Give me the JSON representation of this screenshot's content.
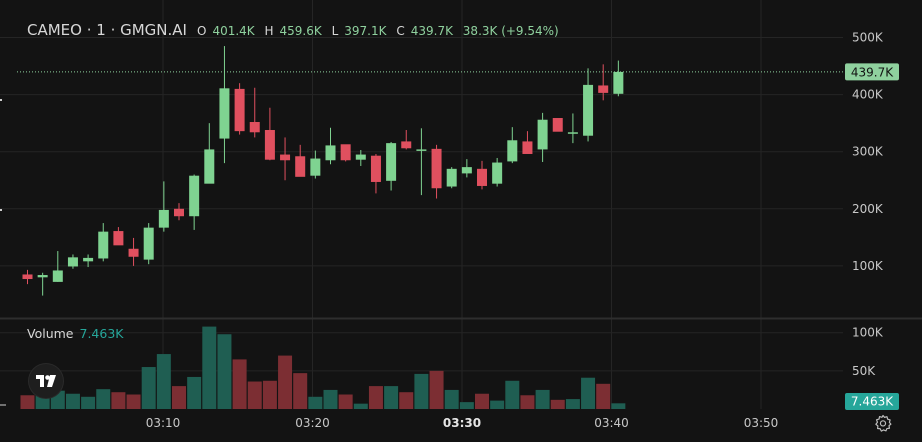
{
  "legend": {
    "symbol": "CAMEO · 1 · GMGN.AI",
    "o_label": "O",
    "o": "401.4K",
    "h_label": "H",
    "h": "459.6K",
    "l_label": "L",
    "l": "397.1K",
    "c_label": "C",
    "c": "439.7K",
    "change": "38.3K (+9.54%)"
  },
  "volume_legend": {
    "label": "Volume",
    "value": "7.463K"
  },
  "colors": {
    "up": "#7fd391",
    "down": "#e0505f",
    "vol_up": "#1f5e52",
    "vol_down": "#7c2e33",
    "bg": "#131313",
    "grid": "#252525",
    "axis_text": "#c8c8c8",
    "price_tag": "#8fd19e",
    "vol_tag": "#26a69a"
  },
  "icons": {
    "logo": "tradingview-logo-icon",
    "settings": "gear-icon"
  },
  "chart_data": {
    "type": "candlestick",
    "price_axis": {
      "ticks": [
        100000,
        200000,
        300000,
        400000,
        500000
      ],
      "tick_labels": [
        "100K",
        "200K",
        "300K",
        "400K",
        "500K"
      ]
    },
    "volume_axis": {
      "ticks": [
        50000,
        100000
      ],
      "tick_labels": [
        "50K",
        "100K"
      ]
    },
    "time_axis": {
      "tick_labels": [
        "03:10",
        "03:20",
        "03:30",
        "03:40",
        "03:50"
      ],
      "bold_label": "03:30"
    },
    "last_price_label": "439.7K",
    "last_volume_label": "7.463K",
    "candles": [
      {
        "t": "03:02",
        "o": 85000,
        "h": 93000,
        "l": 68000,
        "c": 77000,
        "v": 18000
      },
      {
        "t": "03:03",
        "o": 80000,
        "h": 88000,
        "l": 48000,
        "c": 84000,
        "v": 21000
      },
      {
        "t": "03:04",
        "o": 72000,
        "h": 126000,
        "l": 72000,
        "c": 92000,
        "v": 24000
      },
      {
        "t": "03:05",
        "o": 99000,
        "h": 120000,
        "l": 95000,
        "c": 115000,
        "v": 20000
      },
      {
        "t": "03:06",
        "o": 108000,
        "h": 120000,
        "l": 98000,
        "c": 114000,
        "v": 16000
      },
      {
        "t": "03:07",
        "o": 113000,
        "h": 175000,
        "l": 108000,
        "c": 160000,
        "v": 26000
      },
      {
        "t": "03:08",
        "o": 161000,
        "h": 168000,
        "l": 137000,
        "c": 136000,
        "v": 22000
      },
      {
        "t": "03:09",
        "o": 130000,
        "h": 149000,
        "l": 100000,
        "c": 116000,
        "v": 19000
      },
      {
        "t": "03:10",
        "o": 111000,
        "h": 175000,
        "l": 103000,
        "c": 167000,
        "v": 55000
      },
      {
        "t": "03:11",
        "o": 167000,
        "h": 248000,
        "l": 160000,
        "c": 198000,
        "v": 72000
      },
      {
        "t": "03:12",
        "o": 200000,
        "h": 210000,
        "l": 180000,
        "c": 187000,
        "v": 30000
      },
      {
        "t": "03:13",
        "o": 187000,
        "h": 260000,
        "l": 163000,
        "c": 258000,
        "v": 42000
      },
      {
        "t": "03:14",
        "o": 244000,
        "h": 350000,
        "l": 245000,
        "c": 304000,
        "v": 108000
      },
      {
        "t": "03:15",
        "o": 323000,
        "h": 485000,
        "l": 280000,
        "c": 411000,
        "v": 98000
      },
      {
        "t": "03:16",
        "o": 410000,
        "h": 420000,
        "l": 330000,
        "c": 336000,
        "v": 65000
      },
      {
        "t": "03:17",
        "o": 352000,
        "h": 412000,
        "l": 325000,
        "c": 334000,
        "v": 36000
      },
      {
        "t": "03:18",
        "o": 338000,
        "h": 377000,
        "l": 285000,
        "c": 286000,
        "v": 37000
      },
      {
        "t": "03:19",
        "o": 295000,
        "h": 325000,
        "l": 250000,
        "c": 285000,
        "v": 70000
      },
      {
        "t": "03:20",
        "o": 292000,
        "h": 312000,
        "l": 257000,
        "c": 256000,
        "v": 47000
      },
      {
        "t": "03:21",
        "o": 258000,
        "h": 302000,
        "l": 253000,
        "c": 288000,
        "v": 16000
      },
      {
        "t": "03:22",
        "o": 285000,
        "h": 342000,
        "l": 278000,
        "c": 311000,
        "v": 25000
      },
      {
        "t": "03:23",
        "o": 313000,
        "h": 311000,
        "l": 283000,
        "c": 285000,
        "v": 19000
      },
      {
        "t": "03:24",
        "o": 286000,
        "h": 303000,
        "l": 275000,
        "c": 295000,
        "v": 7000
      },
      {
        "t": "03:25",
        "o": 293000,
        "h": 296000,
        "l": 227000,
        "c": 247000,
        "v": 30000
      },
      {
        "t": "03:26",
        "o": 249000,
        "h": 317000,
        "l": 232000,
        "c": 315000,
        "v": 30000
      },
      {
        "t": "03:27",
        "o": 318000,
        "h": 338000,
        "l": 304000,
        "c": 306000,
        "v": 22000
      },
      {
        "t": "03:28",
        "o": 302000,
        "h": 341000,
        "l": 224000,
        "c": 304000,
        "v": 46000
      },
      {
        "t": "03:29",
        "o": 305000,
        "h": 312000,
        "l": 218000,
        "c": 236000,
        "v": 50000
      },
      {
        "t": "03:30",
        "o": 239000,
        "h": 273000,
        "l": 236000,
        "c": 270000,
        "v": 25000
      },
      {
        "t": "03:31",
        "o": 262000,
        "h": 287000,
        "l": 255000,
        "c": 273000,
        "v": 9000
      },
      {
        "t": "03:32",
        "o": 270000,
        "h": 284000,
        "l": 234000,
        "c": 240000,
        "v": 20000
      },
      {
        "t": "03:33",
        "o": 244000,
        "h": 289000,
        "l": 239000,
        "c": 281000,
        "v": 11000
      },
      {
        "t": "03:34",
        "o": 283000,
        "h": 343000,
        "l": 280000,
        "c": 320000,
        "v": 37000
      },
      {
        "t": "03:35",
        "o": 318000,
        "h": 336000,
        "l": 298000,
        "c": 296000,
        "v": 18000
      },
      {
        "t": "03:36",
        "o": 304000,
        "h": 368000,
        "l": 282000,
        "c": 356000,
        "v": 25000
      },
      {
        "t": "03:37",
        "o": 359000,
        "h": 358000,
        "l": 338000,
        "c": 335000,
        "v": 12000
      },
      {
        "t": "03:38",
        "o": 334000,
        "h": 367000,
        "l": 315000,
        "c": 334000,
        "v": 13000
      },
      {
        "t": "03:39",
        "o": 328000,
        "h": 446000,
        "l": 318000,
        "c": 417000,
        "v": 41000
      },
      {
        "t": "03:40",
        "o": 416000,
        "h": 453000,
        "l": 390000,
        "c": 403000,
        "v": 33000
      },
      {
        "t": "03:41",
        "o": 401400,
        "h": 459600,
        "l": 397100,
        "c": 439700,
        "v": 7463
      }
    ]
  }
}
